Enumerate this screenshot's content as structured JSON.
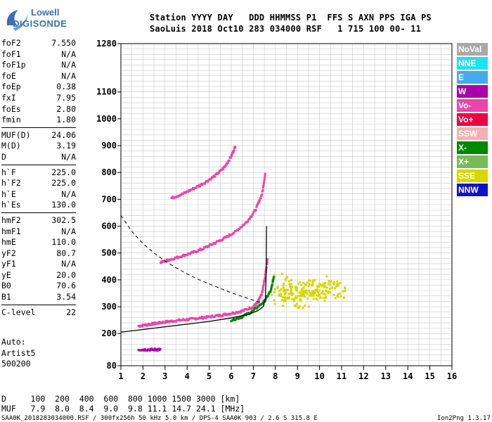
{
  "logo": {
    "line1": "Lowell",
    "line2": "DIGISONDE"
  },
  "header": {
    "line1": "Station YYYY DAY   DDD HHMMSS P1  FFS S AXN PPS IGA PS",
    "line2": "SaoLuis 2018 Oct10 283 034000 RSF   1 715 100 00- 11"
  },
  "params": [
    [
      {
        "key": "foF2",
        "value": "7.550"
      },
      {
        "key": "foF1",
        "value": "N/A"
      },
      {
        "key": "foF1p",
        "value": "N/A"
      },
      {
        "key": "foE",
        "value": "N/A"
      },
      {
        "key": "foEp",
        "value": "0.38"
      },
      {
        "key": "fxI",
        "value": "7.95"
      },
      {
        "key": "foEs",
        "value": "2.80"
      },
      {
        "key": "fmin",
        "value": "1.80"
      }
    ],
    [
      {
        "key": "MUF(D)",
        "value": "24.06"
      },
      {
        "key": "M(D)",
        "value": "3.19"
      },
      {
        "key": "D",
        "value": "N/A"
      }
    ],
    [
      {
        "key": "h`F",
        "value": "225.0"
      },
      {
        "key": "h`F2",
        "value": "225.0"
      },
      {
        "key": "h`E",
        "value": "N/A"
      },
      {
        "key": "h`Es",
        "value": "130.0"
      }
    ],
    [
      {
        "key": "hmF2",
        "value": "302.5"
      },
      {
        "key": "hmF1",
        "value": "N/A"
      },
      {
        "key": "hmE",
        "value": "110.0"
      },
      {
        "key": "yF2",
        "value": "80.7"
      },
      {
        "key": "yF1",
        "value": "N/A"
      },
      {
        "key": "yE",
        "value": "20.0"
      },
      {
        "key": "B0",
        "value": "70.6"
      },
      {
        "key": "B1",
        "value": "3.54"
      }
    ],
    [
      {
        "key": "C-level",
        "value": "22"
      }
    ]
  ],
  "auto": {
    "line1": "Auto:",
    "line2": "Artist5",
    "line3": "500200"
  },
  "legend": [
    {
      "label": "NoVal",
      "color": "#a8a8a8"
    },
    {
      "label": "NNE",
      "color": "#22e0f0"
    },
    {
      "label": "E",
      "color": "#44aaee"
    },
    {
      "label": "W",
      "color": "#aa00aa"
    },
    {
      "label": "Vo-",
      "color": "#ee44aa"
    },
    {
      "label": "Vo+",
      "color": "#ee0044"
    },
    {
      "label": "SSW",
      "color": "#f4b0b0"
    },
    {
      "label": "X-",
      "color": "#008800"
    },
    {
      "label": "X+",
      "color": "#77bb55"
    },
    {
      "label": "SSE",
      "color": "#d8d800"
    },
    {
      "label": "NNW",
      "color": "#1010cc"
    }
  ],
  "bottom": {
    "line1": "D     100  200  400  600  800 1000 1500 3000 [km]",
    "line2": "MUF   7.9  8.0  8.4  9.0  9.8 11.1 14.7 24.1 [MHz]",
    "line3": "SAA0K_2018283034000.RSF / 300fx256h 50 kHz 5.0 km / DPS-4 SAA0K 903 / 2.6 S 315.8 E",
    "version": "Ion2Png 1.3.17"
  },
  "chart_data": {
    "type": "scatter",
    "xlabel": "",
    "ylabel": "",
    "xlim": [
      1,
      16
    ],
    "ylim": [
      80,
      1280
    ],
    "x_ticks": [
      "1",
      "2",
      "3",
      "4",
      "5",
      "6",
      "7",
      "8",
      "9",
      "10",
      "11",
      "12",
      "13",
      "14",
      "15",
      "16"
    ],
    "y_ticks": [
      "80",
      "200",
      "300",
      "400",
      "500",
      "600",
      "700",
      "800",
      "900",
      "1000",
      "1100",
      "1280"
    ],
    "traces": [
      {
        "name": "F2 O-trace (virtual height)",
        "color": "#ee44aa",
        "points": [
          [
            1.8,
            228
          ],
          [
            2.2,
            233
          ],
          [
            2.6,
            238
          ],
          [
            3.0,
            243
          ],
          [
            3.5,
            248
          ],
          [
            4.0,
            252
          ],
          [
            4.5,
            257
          ],
          [
            5.0,
            262
          ],
          [
            5.5,
            268
          ],
          [
            6.0,
            275
          ],
          [
            6.5,
            284
          ],
          [
            7.0,
            300
          ],
          [
            7.2,
            315
          ],
          [
            7.4,
            350
          ],
          [
            7.55,
            420
          ],
          [
            7.65,
            480
          ]
        ]
      },
      {
        "name": "F2 second hop",
        "color": "#ee44aa",
        "points": [
          [
            2.8,
            465
          ],
          [
            3.2,
            475
          ],
          [
            3.7,
            487
          ],
          [
            4.2,
            500
          ],
          [
            4.7,
            515
          ],
          [
            5.2,
            535
          ],
          [
            5.7,
            555
          ],
          [
            6.2,
            580
          ],
          [
            6.7,
            615
          ],
          [
            7.1,
            660
          ],
          [
            7.4,
            720
          ],
          [
            7.55,
            800
          ]
        ]
      },
      {
        "name": "F2 third hop",
        "color": "#ee44aa",
        "points": [
          [
            3.3,
            705
          ],
          [
            3.8,
            720
          ],
          [
            4.3,
            740
          ],
          [
            4.8,
            762
          ],
          [
            5.3,
            790
          ],
          [
            5.7,
            820
          ],
          [
            6.0,
            860
          ],
          [
            6.2,
            900
          ]
        ]
      },
      {
        "name": "X trace",
        "color": "#008800",
        "points": [
          [
            6.0,
            250
          ],
          [
            6.5,
            262
          ],
          [
            7.0,
            285
          ],
          [
            7.5,
            320
          ],
          [
            7.8,
            360
          ],
          [
            7.95,
            420
          ]
        ]
      },
      {
        "name": "Es trace",
        "color": "#aa00aa",
        "points": [
          [
            1.8,
            140
          ],
          [
            2.2,
            140
          ],
          [
            2.6,
            140
          ],
          [
            2.8,
            140
          ]
        ]
      },
      {
        "name": "Spread F (SSE)",
        "color": "#d8d800",
        "points": [
          [
            8.0,
            330
          ],
          [
            8.5,
            360
          ],
          [
            9.0,
            340
          ],
          [
            9.5,
            380
          ],
          [
            10.0,
            350
          ],
          [
            10.5,
            370
          ],
          [
            11.0,
            360
          ],
          [
            8.2,
            400
          ],
          [
            9.2,
            310
          ],
          [
            10.2,
            390
          ]
        ]
      }
    ],
    "profile_curve": {
      "name": "true-height profile",
      "color": "#000000",
      "points": [
        [
          1.0,
          205
        ],
        [
          2.0,
          215
        ],
        [
          3.0,
          225
        ],
        [
          4.0,
          235
        ],
        [
          5.0,
          245
        ],
        [
          6.0,
          258
        ],
        [
          6.8,
          272
        ],
        [
          7.2,
          285
        ],
        [
          7.45,
          300
        ],
        [
          7.55,
          330
        ],
        [
          7.58,
          420
        ],
        [
          7.6,
          600
        ]
      ]
    },
    "dashed_curve": {
      "name": "MUF scale",
      "color": "#000000",
      "points": [
        [
          1.0,
          640
        ],
        [
          1.5,
          580
        ],
        [
          2.0,
          535
        ],
        [
          2.5,
          500
        ],
        [
          3.0,
          470
        ],
        [
          3.5,
          445
        ],
        [
          4.0,
          422
        ],
        [
          4.5,
          402
        ],
        [
          5.0,
          385
        ],
        [
          5.5,
          368
        ],
        [
          6.0,
          352
        ],
        [
          6.5,
          338
        ],
        [
          7.0,
          324
        ],
        [
          7.5,
          310
        ]
      ]
    }
  }
}
